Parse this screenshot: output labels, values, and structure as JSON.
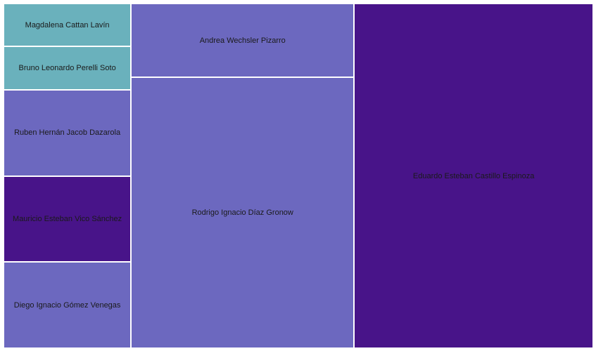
{
  "chart_data": {
    "type": "treemap",
    "title": "",
    "colors": {
      "teal": "#6ab1bc",
      "periwinkle": "#6c68bf",
      "purple": "#481489"
    },
    "items": [
      {
        "label": "Eduardo Esteban Castillo Espinoza",
        "value": 165,
        "color": "#481489"
      },
      {
        "label": "Rodrigo Ignacio Díaz Gronow",
        "value": 121,
        "color": "#6c68bf"
      },
      {
        "label": "Andrea Wechsler Pizarro",
        "value": 33,
        "color": "#6c68bf"
      },
      {
        "label": "Ruben Hernán Jacob Dazarola",
        "value": 22,
        "color": "#6c68bf"
      },
      {
        "label": "Mauricio Esteban Vico Sánchez",
        "value": 22,
        "color": "#481489"
      },
      {
        "label": "Diego Ignacio Gómez Venegas",
        "value": 22,
        "color": "#6c68bf"
      },
      {
        "label": "Magdalena Cattan Lavín",
        "value": 11,
        "color": "#6ab1bc"
      },
      {
        "label": "Bruno Leonardo Perelli Soto",
        "value": 11,
        "color": "#6ab1bc"
      }
    ]
  }
}
